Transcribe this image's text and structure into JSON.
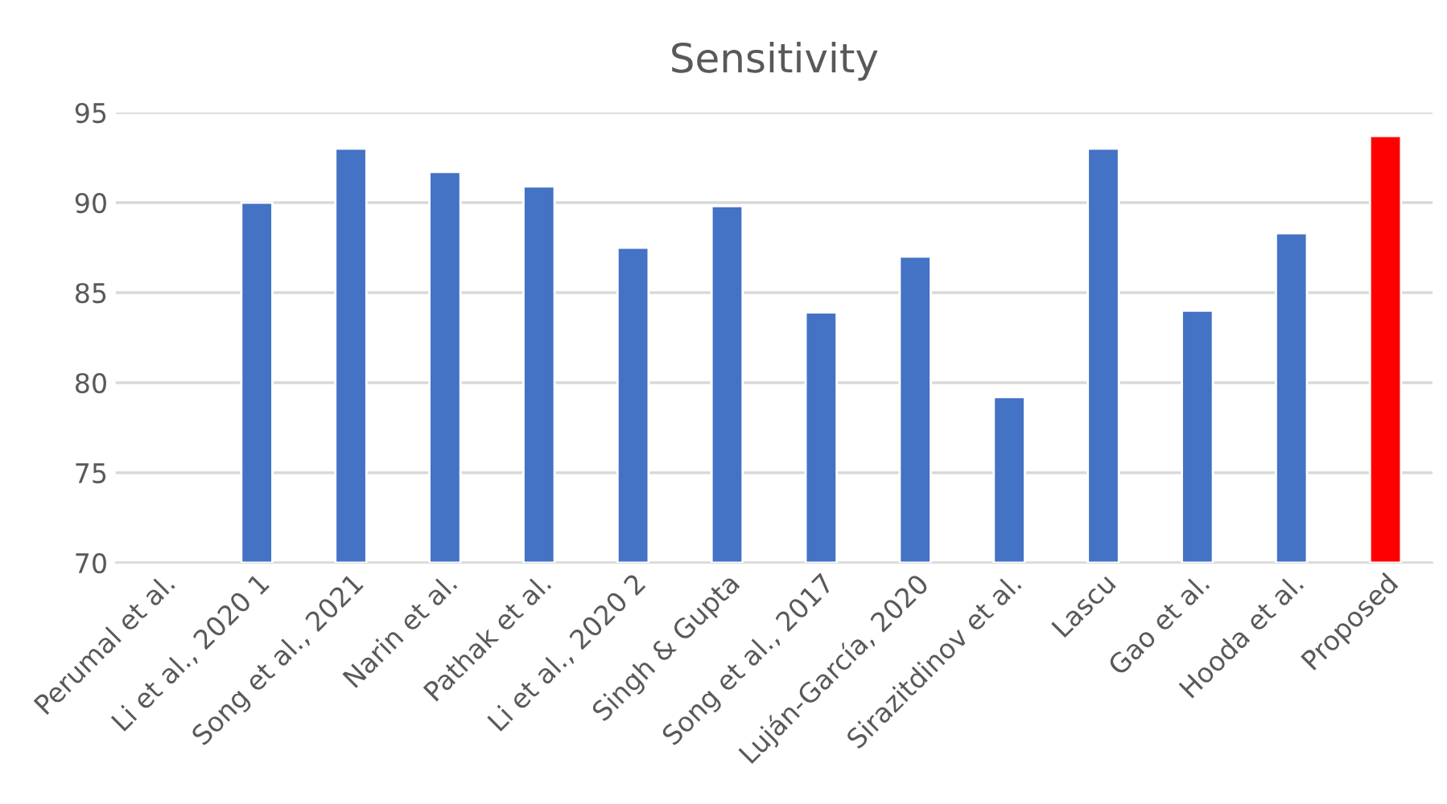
{
  "chart_data": {
    "type": "bar",
    "title": "Sensitivity",
    "categories": [
      "Perumal et al.",
      "Li et al., 2020 1",
      "Song et al., 2021",
      "Narin et al.",
      "Pathak et al.",
      "Li et al., 2020 2",
      "Singh & Gupta",
      "Song et al., 2017",
      "Luján-García, 2020",
      "Sirazitdinov et al.",
      "Lascu",
      "Gao et al.",
      "Hooda et al.",
      "Proposed"
    ],
    "values": [
      null,
      90.0,
      93.0,
      91.7,
      90.9,
      87.5,
      89.8,
      83.9,
      87.0,
      79.2,
      93.0,
      84.0,
      88.3,
      93.7
    ],
    "colors": [
      "#4472c4",
      "#4472c4",
      "#4472c4",
      "#4472c4",
      "#4472c4",
      "#4472c4",
      "#4472c4",
      "#4472c4",
      "#4472c4",
      "#4472c4",
      "#4472c4",
      "#4472c4",
      "#4472c4",
      "#ff0000"
    ],
    "ylim": [
      70,
      95
    ],
    "yticks": [
      70,
      75,
      80,
      85,
      90,
      95
    ],
    "grid": "y",
    "legend": false
  }
}
